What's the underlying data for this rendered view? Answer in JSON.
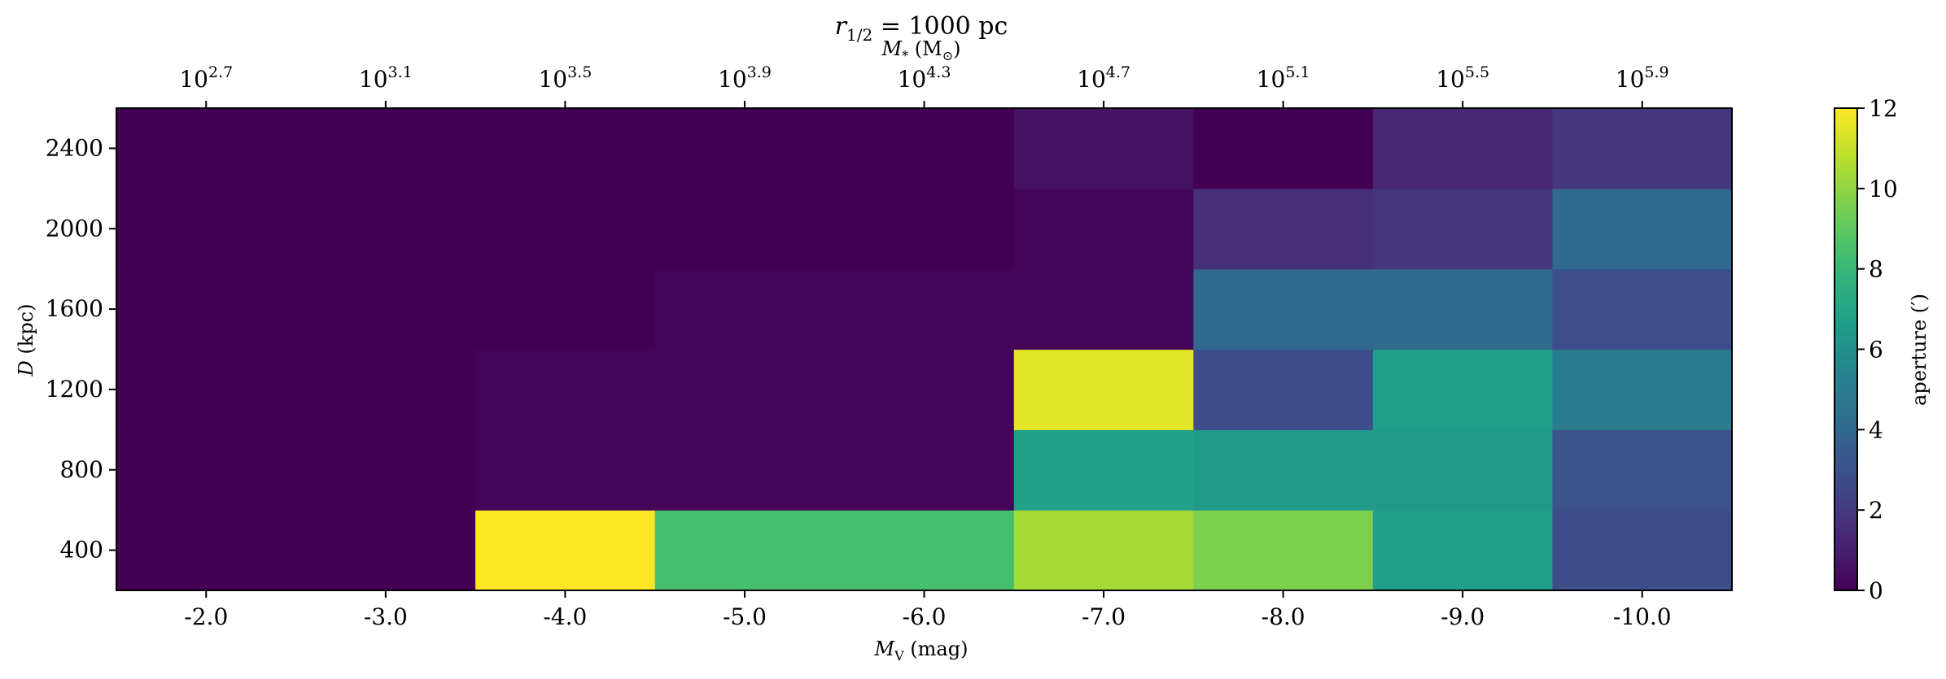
{
  "chart_data": {
    "type": "heatmap",
    "title_parts": {
      "base": "r",
      "sub": "1/2",
      "rest": " = 1000 pc"
    },
    "xlabel_parts": {
      "base": "M",
      "sub": "V",
      "rest": " (mag)"
    },
    "ylabel_parts": {
      "italic": "D",
      "rest": " (kpc)"
    },
    "top_xlabel_parts": {
      "base": "M",
      "sub": "*",
      "rest": " (M",
      "sub2": "⊙",
      "end": ")"
    },
    "colorbar_label": "aperture (′)",
    "x_ticks": [
      "-2.0",
      "-3.0",
      "-4.0",
      "-5.0",
      "-6.0",
      "-7.0",
      "-8.0",
      "-9.0",
      "-10.0"
    ],
    "top_ticks": [
      {
        "base": "10",
        "exp": "2.7"
      },
      {
        "base": "10",
        "exp": "3.1"
      },
      {
        "base": "10",
        "exp": "3.5"
      },
      {
        "base": "10",
        "exp": "3.9"
      },
      {
        "base": "10",
        "exp": "4.3"
      },
      {
        "base": "10",
        "exp": "4.7"
      },
      {
        "base": "10",
        "exp": "5.1"
      },
      {
        "base": "10",
        "exp": "5.5"
      },
      {
        "base": "10",
        "exp": "5.9"
      }
    ],
    "y_ticks": [
      "400",
      "800",
      "1200",
      "1600",
      "2000",
      "2400"
    ],
    "colorbar_ticks": [
      "0",
      "2",
      "4",
      "6",
      "8",
      "10",
      "12"
    ],
    "x_values": [
      -2,
      -3,
      -4,
      -5,
      -6,
      -7,
      -8,
      -9,
      -10
    ],
    "y_values": [
      400,
      800,
      1200,
      1600,
      2000,
      2400
    ],
    "vmin": 0,
    "vmax": 12,
    "colormap": "viridis",
    "values": [
      [
        0.0,
        0.0,
        12.0,
        8.4,
        8.4,
        10.4,
        9.6,
        6.7,
        2.8
      ],
      [
        0.0,
        0.0,
        0.15,
        0.15,
        0.15,
        6.8,
        6.5,
        6.5,
        3.0
      ],
      [
        0.0,
        0.0,
        0.15,
        0.15,
        0.15,
        11.5,
        2.8,
        6.7,
        5.0
      ],
      [
        0.0,
        0.0,
        0.0,
        0.15,
        0.15,
        0.15,
        4.0,
        4.1,
        2.9
      ],
      [
        0.0,
        0.0,
        0.0,
        0.0,
        0.0,
        0.15,
        1.6,
        1.8,
        4.0
      ],
      [
        0.0,
        0.0,
        0.0,
        0.0,
        0.0,
        0.6,
        0.0,
        1.3,
        1.9
      ]
    ]
  }
}
